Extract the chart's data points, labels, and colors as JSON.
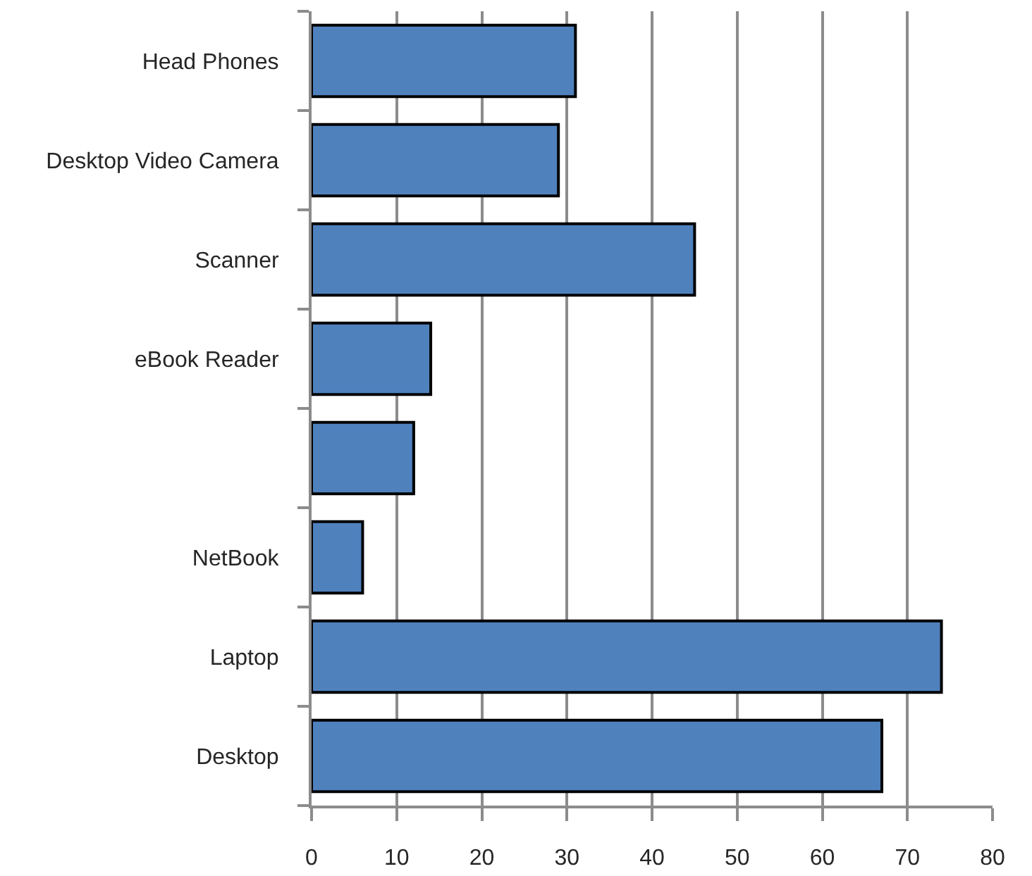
{
  "chart_data": {
    "type": "bar",
    "orientation": "horizontal",
    "categories": [
      "Head Phones",
      "Desktop Video Camera",
      "Scanner",
      "eBook Reader",
      null,
      "NetBook",
      "Laptop",
      "Desktop"
    ],
    "values": [
      31,
      29,
      45,
      14,
      12,
      6,
      74,
      67
    ],
    "color": "#4f81bd",
    "xlim": [
      0,
      80
    ],
    "xticks": [
      0,
      10,
      20,
      30,
      40,
      50,
      60,
      70,
      80
    ],
    "grid": "x"
  }
}
